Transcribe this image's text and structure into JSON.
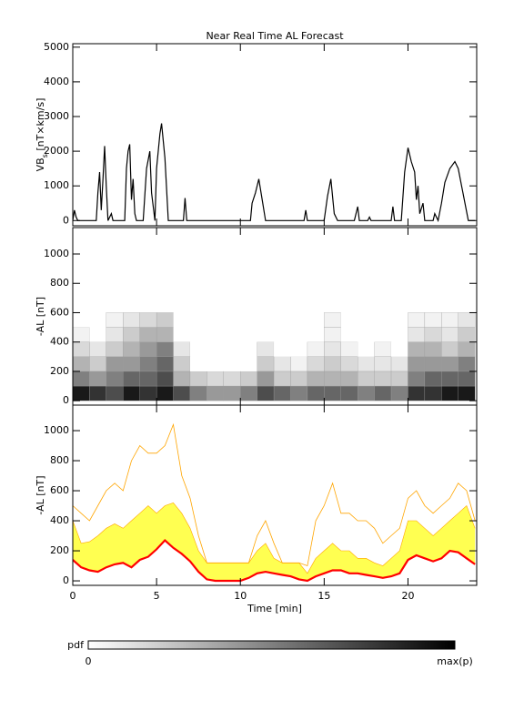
{
  "chart_data": [
    {
      "type": "line",
      "title": "Near Real Time AL Forecast",
      "ylabel": [
        "VB",
        "s",
        " [nT×km/s]"
      ],
      "xlim": [
        0,
        24.1
      ],
      "xticks": [
        0,
        5,
        10,
        15,
        20
      ],
      "show_xtick_labels": false,
      "ylim": [
        -150,
        5100
      ],
      "yticks": [
        0,
        1000,
        2000,
        3000,
        4000,
        5000
      ],
      "color": "#000000",
      "x": [
        0,
        0.1,
        0.2,
        0.3,
        1.4,
        1.5,
        1.6,
        1.7,
        1.8,
        1.9,
        2.0,
        2.1,
        2.3,
        2.4,
        3.1,
        3.2,
        3.3,
        3.4,
        3.5,
        3.6,
        3.7,
        3.8,
        4.2,
        4.4,
        4.6,
        4.7,
        4.9,
        5.0,
        5.2,
        5.3,
        5.5,
        5.7,
        6.6,
        6.7,
        6.8,
        10.6,
        10.7,
        10.9,
        11.1,
        11.3,
        11.5,
        13.8,
        13.9,
        14.0,
        15.0,
        15.2,
        15.4,
        15.6,
        15.8,
        16.8,
        17.0,
        17.1,
        17.6,
        17.7,
        17.8,
        19.0,
        19.1,
        19.2,
        19.6,
        19.8,
        20.0,
        20.2,
        20.4,
        20.5,
        20.6,
        20.7,
        20.9,
        21.0,
        21.5,
        21.6,
        21.8,
        22.0,
        22.2,
        22.5,
        22.8,
        23.0,
        23.2,
        23.4,
        23.6,
        24
      ],
      "values": [
        0,
        300,
        100,
        0,
        0,
        800,
        1400,
        300,
        1200,
        2150,
        1000,
        0,
        200,
        0,
        0,
        1500,
        2000,
        2200,
        600,
        1200,
        200,
        0,
        0,
        1500,
        2000,
        800,
        0,
        1500,
        2500,
        2800,
        1800,
        0,
        0,
        650,
        0,
        0,
        500,
        800,
        1200,
        600,
        0,
        0,
        300,
        0,
        0,
        700,
        1200,
        200,
        0,
        0,
        400,
        0,
        0,
        100,
        0,
        0,
        400,
        0,
        0,
        1400,
        2100,
        1700,
        1400,
        600,
        1000,
        200,
        500,
        0,
        0,
        200,
        0,
        500,
        1100,
        1500,
        1700,
        1500,
        1000,
        500,
        0,
        0
      ]
    },
    {
      "type": "heatmap",
      "ylabel": "-AL [nT]",
      "xlim": [
        0,
        24.1
      ],
      "xticks": [
        0,
        5,
        10,
        15,
        20
      ],
      "show_xtick_labels": false,
      "ylim": [
        -30,
        1180
      ],
      "yticks": [
        0,
        200,
        400,
        600,
        800,
        1000
      ],
      "xbins": [
        0,
        1,
        2,
        3,
        4,
        5,
        6,
        7,
        8,
        9,
        10,
        11,
        12,
        13,
        14,
        15,
        16,
        17,
        18,
        19,
        20,
        21,
        22,
        23,
        24
      ],
      "ybins": [
        0,
        100,
        200,
        300,
        400,
        500,
        600
      ],
      "values": [
        [
          0.9,
          0.8,
          0.7,
          0.9,
          0.8,
          0.9,
          0.7,
          0.5,
          0.4,
          0.4,
          0.5,
          0.7,
          0.6,
          0.5,
          0.6,
          0.6,
          0.6,
          0.5,
          0.6,
          0.5,
          0.8,
          0.8,
          0.9,
          0.9
        ],
        [
          0.5,
          0.4,
          0.5,
          0.6,
          0.6,
          0.7,
          0.3,
          0.2,
          0.15,
          0.15,
          0.2,
          0.4,
          0.2,
          0.2,
          0.3,
          0.3,
          0.3,
          0.2,
          0.2,
          0.2,
          0.5,
          0.6,
          0.6,
          0.6
        ],
        [
          0.3,
          0.2,
          0.4,
          0.4,
          0.5,
          0.6,
          0.2,
          0,
          0,
          0,
          0,
          0.2,
          0.1,
          0.05,
          0.15,
          0.2,
          0.15,
          0.1,
          0.1,
          0.1,
          0.4,
          0.4,
          0.4,
          0.5
        ],
        [
          0.15,
          0.1,
          0.2,
          0.3,
          0.4,
          0.5,
          0.1,
          0,
          0,
          0,
          0,
          0.1,
          0,
          0,
          0.05,
          0.1,
          0.05,
          0,
          0.05,
          0,
          0.3,
          0.3,
          0.2,
          0.3
        ],
        [
          0.05,
          0,
          0.1,
          0.2,
          0.3,
          0.3,
          0,
          0,
          0,
          0,
          0,
          0,
          0,
          0,
          0,
          0.05,
          0,
          0,
          0,
          0,
          0.1,
          0.15,
          0.1,
          0.2
        ],
        [
          0,
          0,
          0.05,
          0.1,
          0.15,
          0.2,
          0,
          0,
          0,
          0,
          0,
          0,
          0,
          0,
          0,
          0.05,
          0,
          0,
          0,
          0,
          0.05,
          0.05,
          0.05,
          0.1
        ]
      ]
    },
    {
      "type": "band",
      "ylabel": "-AL [nT]",
      "xlabel": "Time [min]",
      "xlim": [
        0,
        24.1
      ],
      "xticks": [
        0,
        5,
        10,
        15,
        20
      ],
      "show_xtick_labels": true,
      "ylim": [
        -30,
        1170
      ],
      "yticks": [
        0,
        200,
        400,
        600,
        800,
        1000
      ],
      "x": [
        0,
        0.5,
        1,
        1.5,
        2,
        2.5,
        3,
        3.5,
        4,
        4.5,
        5,
        5.5,
        6,
        6.5,
        7,
        7.5,
        8,
        8.5,
        9,
        9.5,
        10,
        10.5,
        11,
        11.5,
        12,
        12.5,
        13,
        13.5,
        14,
        14.5,
        15,
        15.5,
        16,
        16.5,
        17,
        17.5,
        18,
        18.5,
        19,
        19.5,
        20,
        20.5,
        21,
        21.5,
        22,
        22.5,
        23,
        23.5,
        24
      ],
      "lower": {
        "color": "#ff0000",
        "values": [
          140,
          90,
          70,
          60,
          90,
          110,
          120,
          90,
          140,
          160,
          210,
          270,
          220,
          180,
          130,
          60,
          10,
          0,
          0,
          0,
          0,
          20,
          50,
          60,
          50,
          40,
          30,
          10,
          0,
          30,
          50,
          70,
          70,
          50,
          50,
          40,
          30,
          20,
          30,
          50,
          140,
          170,
          150,
          130,
          150,
          200,
          190,
          150,
          110
        ]
      },
      "band_upper": {
        "color": "#ffff33",
        "values": [
          400,
          250,
          260,
          300,
          350,
          380,
          350,
          400,
          450,
          500,
          450,
          500,
          520,
          450,
          350,
          200,
          120,
          120,
          120,
          120,
          120,
          120,
          200,
          250,
          150,
          120,
          120,
          120,
          50,
          150,
          200,
          250,
          200,
          200,
          150,
          150,
          120,
          100,
          150,
          200,
          400,
          400,
          350,
          300,
          350,
          400,
          450,
          500,
          350
        ]
      },
      "outer_upper": {
        "color": "#ffa500",
        "values": [
          500,
          450,
          400,
          500,
          600,
          650,
          600,
          800,
          900,
          850,
          850,
          900,
          1040,
          700,
          550,
          300,
          120,
          120,
          120,
          120,
          120,
          120,
          300,
          400,
          250,
          120,
          120,
          120,
          100,
          400,
          500,
          650,
          450,
          450,
          400,
          400,
          350,
          250,
          300,
          350,
          550,
          600,
          500,
          450,
          500,
          550,
          650,
          600,
          400
        ]
      }
    }
  ],
  "colorbar": {
    "title": "pdf",
    "min_label": "0",
    "max_label": "max(p)"
  }
}
